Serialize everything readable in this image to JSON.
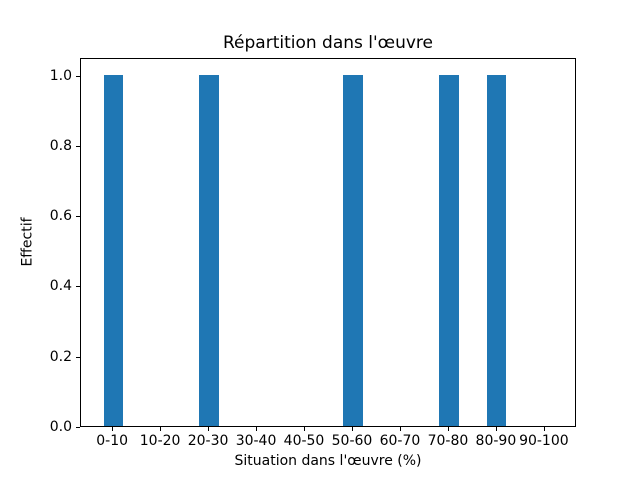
{
  "chart_data": {
    "type": "bar",
    "title": "Répartition dans l'œuvre",
    "xlabel": "Situation dans l'œuvre (%)",
    "ylabel": "Effectif",
    "categories": [
      "0-10",
      "10-20",
      "20-30",
      "30-40",
      "40-50",
      "50-60",
      "60-70",
      "70-80",
      "80-90",
      "90-100"
    ],
    "values": [
      1,
      0,
      1,
      0,
      0,
      1,
      0,
      1,
      1,
      0
    ],
    "yticks": [
      0.0,
      0.2,
      0.4,
      0.6,
      0.8,
      1.0
    ],
    "ytick_labels": [
      "0.0",
      "0.2",
      "0.4",
      "0.6",
      "0.8",
      "1.0"
    ],
    "ylim": [
      0,
      1.05
    ],
    "xlim": [
      -0.67,
      9.67
    ],
    "bar_width_units": 0.4,
    "bar_color": "#1f77b4",
    "axis_color": "#000000",
    "background_color": "#ffffff",
    "grid": false,
    "legend": null
  }
}
